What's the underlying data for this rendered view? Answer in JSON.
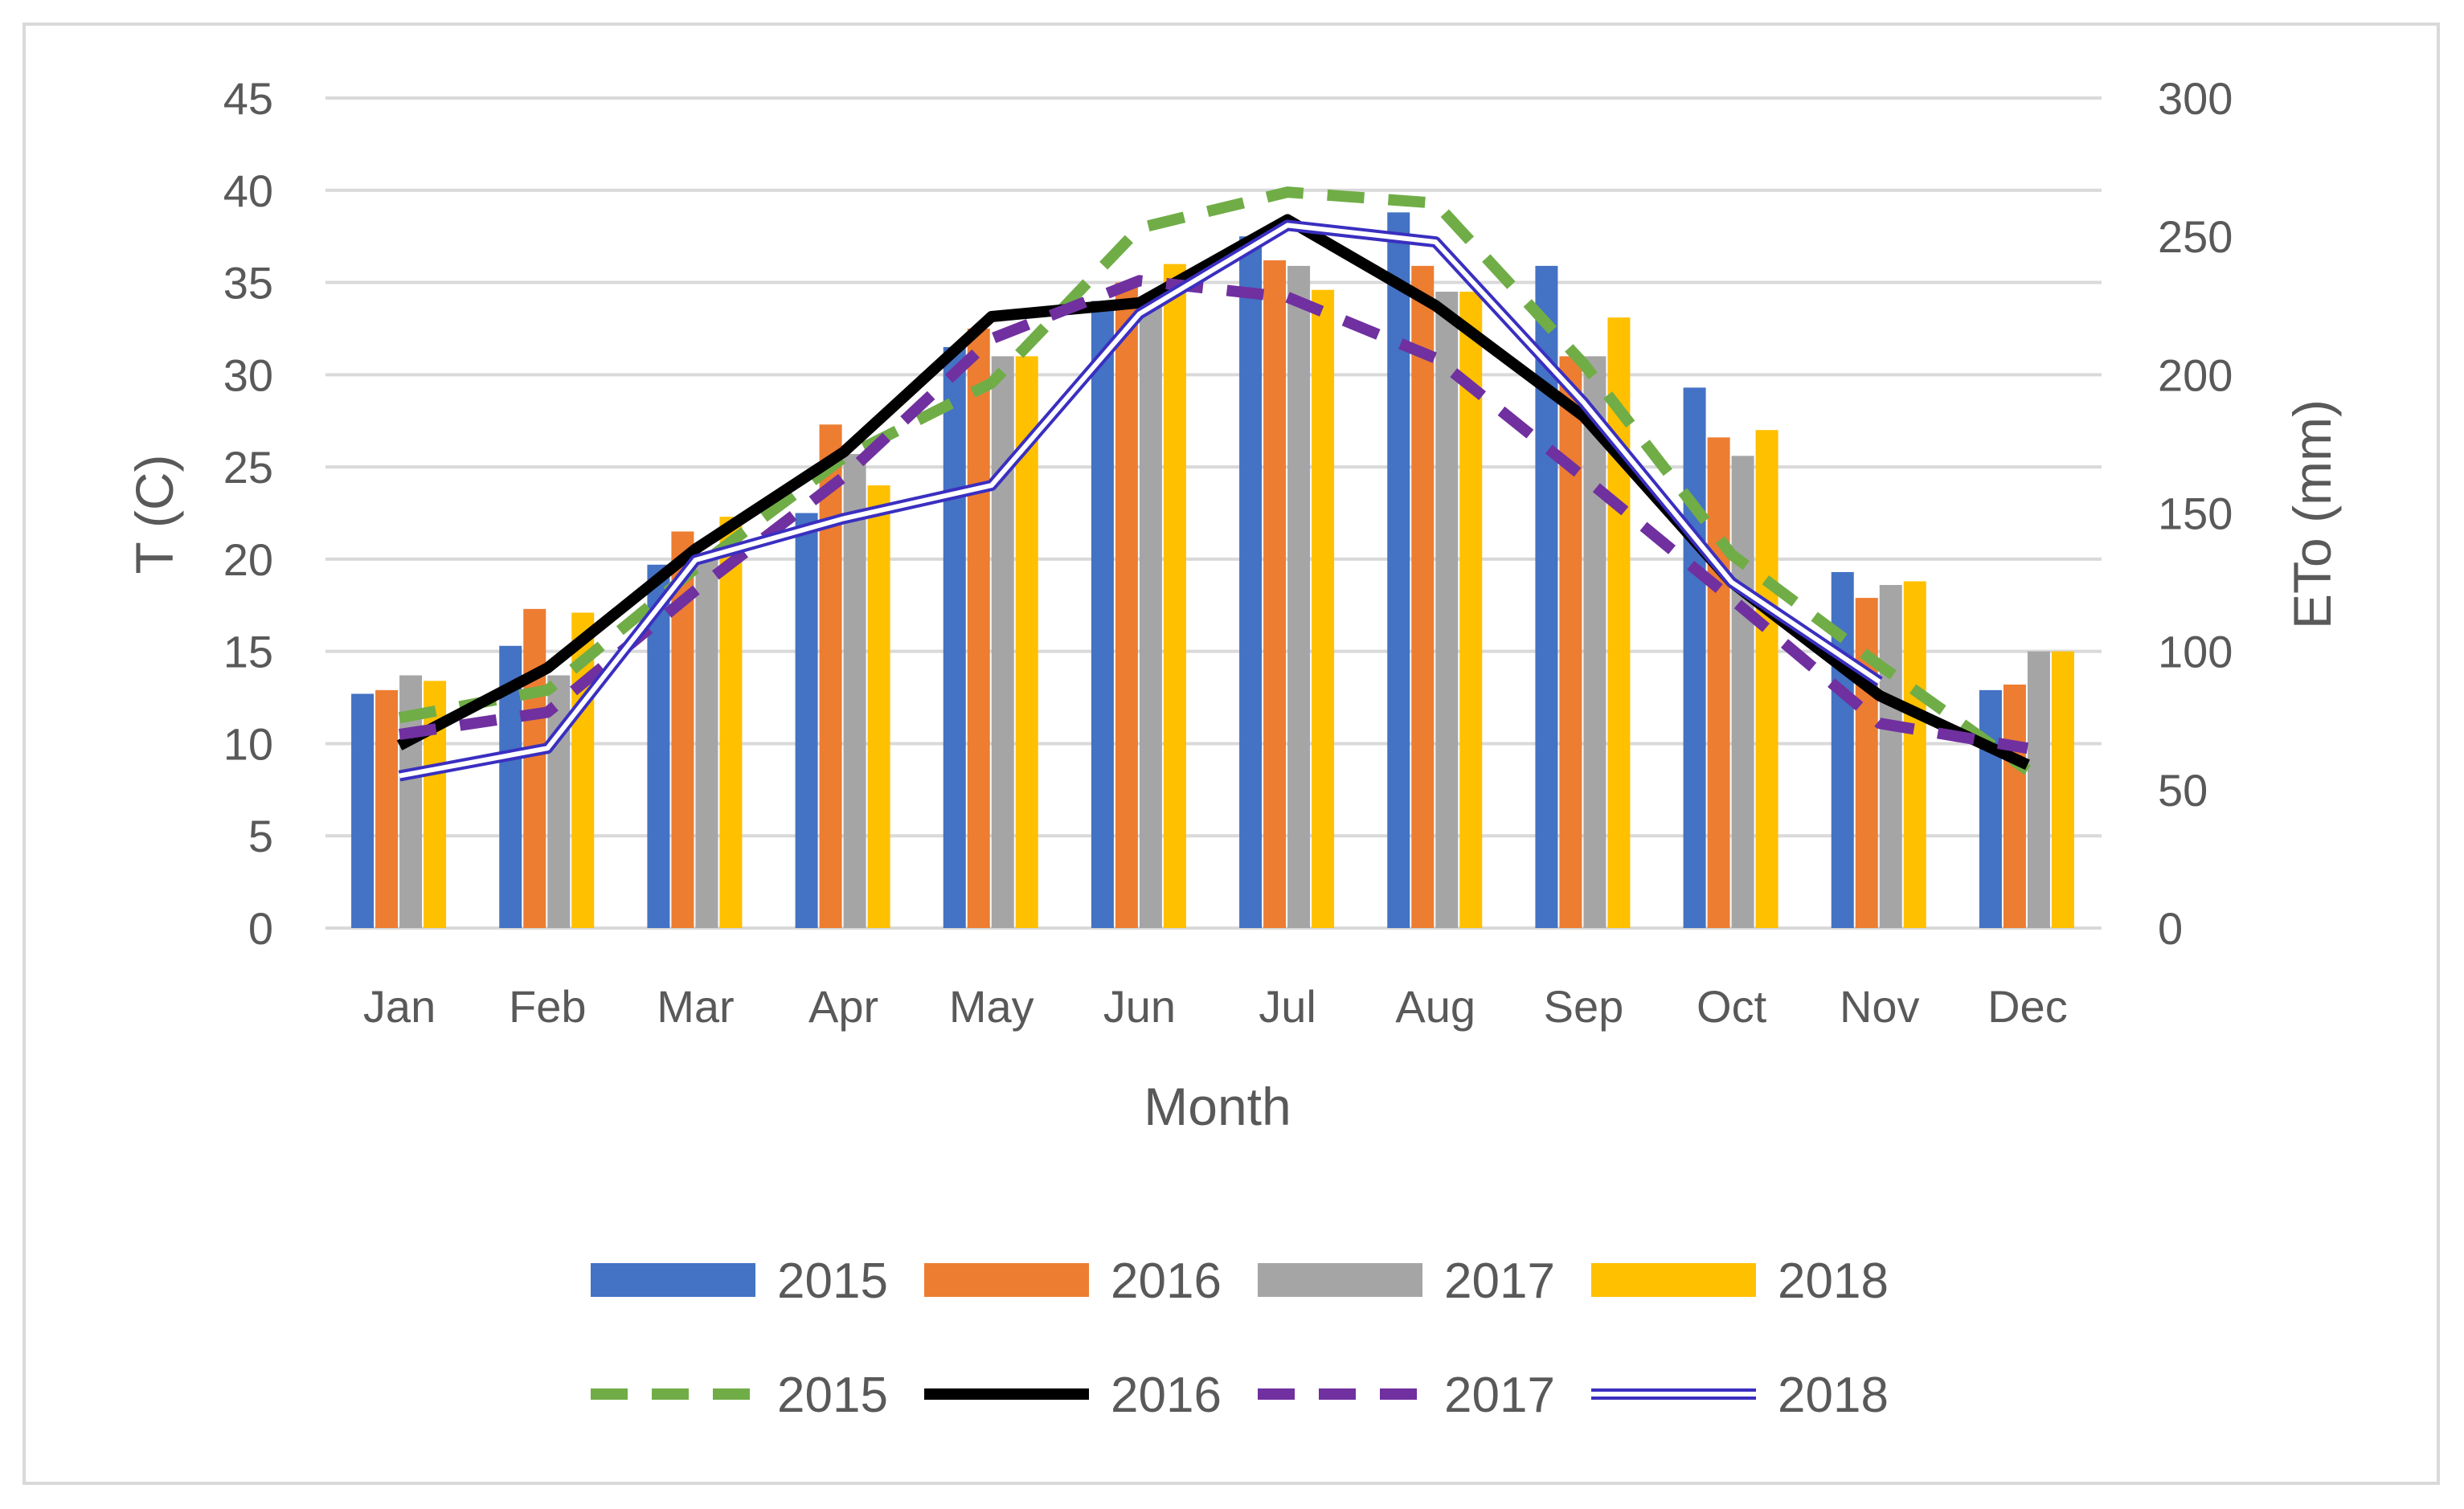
{
  "chart_data": {
    "type": "bar",
    "title": "",
    "xlabel": "Month",
    "ylabel": "T (C)",
    "ylabel_right": "ETo (mm)",
    "ylim": [
      0,
      45
    ],
    "ylim_right": [
      0,
      300
    ],
    "yticks": [
      "0",
      "5",
      "10",
      "15",
      "20",
      "25",
      "30",
      "35",
      "40",
      "45"
    ],
    "yticks_right": [
      "0",
      "50",
      "100",
      "150",
      "200",
      "250",
      "300"
    ],
    "categories": [
      "Jan",
      "Feb",
      "Mar",
      "Apr",
      "May",
      "Jun",
      "Jul",
      "Aug",
      "Sep",
      "Oct",
      "Nov",
      "Dec"
    ],
    "grid": true,
    "legend_position": "bottom",
    "series": [
      {
        "name": "2015",
        "type": "bar",
        "axis": "left",
        "color": "#4472c4",
        "values": [
          12.7,
          15.3,
          19.7,
          22.5,
          31.5,
          34.0,
          37.5,
          38.8,
          35.9,
          29.3,
          19.3,
          12.9
        ]
      },
      {
        "name": "2016",
        "type": "bar",
        "axis": "left",
        "color": "#ed7d31",
        "values": [
          12.9,
          17.3,
          21.5,
          27.3,
          32.5,
          35.0,
          36.2,
          35.9,
          31.0,
          26.6,
          17.9,
          13.2
        ]
      },
      {
        "name": "2017",
        "type": "bar",
        "axis": "left",
        "color": "#a5a5a5",
        "values": [
          13.7,
          13.7,
          20.2,
          25.7,
          31.0,
          34.0,
          35.9,
          34.5,
          31.0,
          25.6,
          18.6,
          15.0
        ]
      },
      {
        "name": "2018",
        "type": "bar",
        "axis": "left",
        "color": "#ffc000",
        "values": [
          13.4,
          17.1,
          22.3,
          24.0,
          31.0,
          36.0,
          34.6,
          34.5,
          33.1,
          27.0,
          18.8,
          15.0
        ]
      },
      {
        "name": "2015",
        "type": "line",
        "axis": "right",
        "style": "dashed",
        "color": "#70ad47",
        "values": [
          76,
          86,
          130,
          170,
          197,
          253,
          266,
          262,
          204,
          135,
          95,
          57
        ]
      },
      {
        "name": "2016",
        "type": "line",
        "axis": "right",
        "style": "solid",
        "color": "#000000",
        "values": [
          66,
          94,
          137,
          172,
          221,
          226,
          256,
          225,
          185,
          125,
          84,
          59
        ]
      },
      {
        "name": "2017",
        "type": "line",
        "axis": "right",
        "style": "dashed",
        "color": "#7030a0",
        "values": [
          70,
          78,
          122,
          163,
          213,
          234,
          228,
          206,
          163,
          119,
          74,
          65
        ]
      },
      {
        "name": "2018",
        "type": "line",
        "axis": "right",
        "style": "double",
        "color": "#3a2fc0",
        "values": [
          55,
          65,
          133,
          148,
          160,
          222,
          254,
          248,
          190,
          125,
          89,
          null
        ]
      }
    ]
  }
}
